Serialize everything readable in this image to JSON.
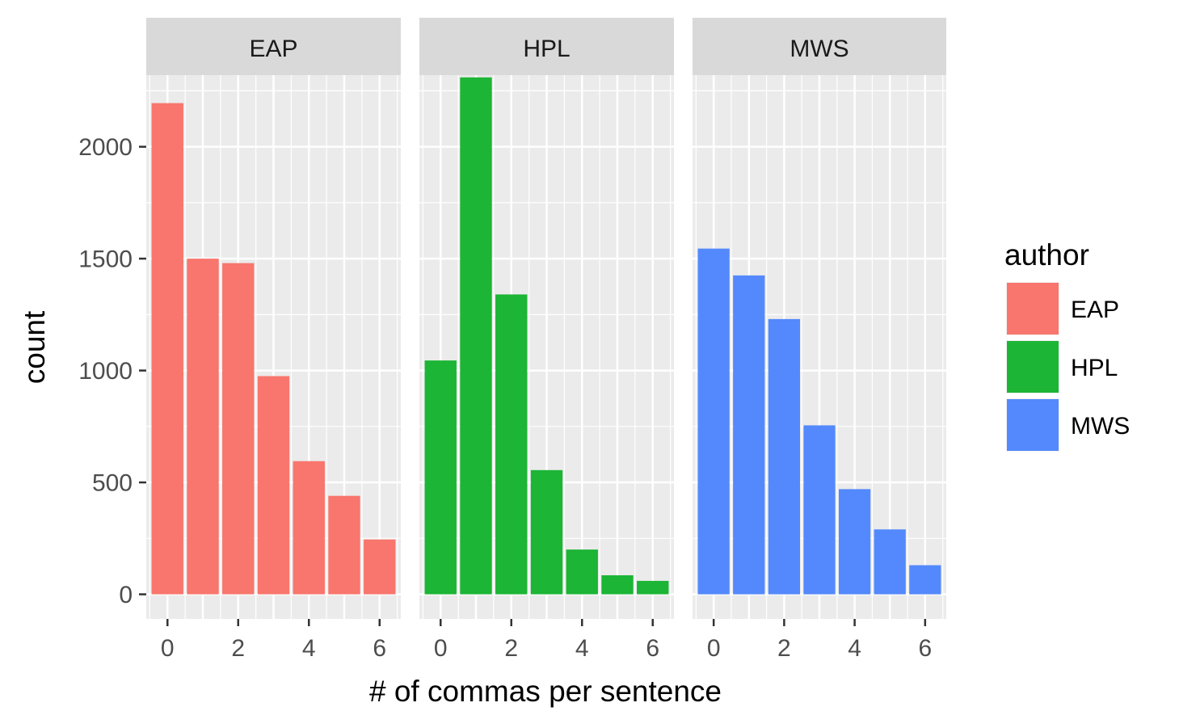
{
  "chart_data": {
    "type": "bar",
    "xlabel": "# of commas per sentence",
    "ylabel": "count",
    "x_ticks": [
      "0",
      "2",
      "4",
      "6"
    ],
    "x_tick_values": [
      0,
      2,
      4,
      6
    ],
    "xlim": [
      -0.6,
      6.6
    ],
    "y_ticks": [
      "0",
      "500",
      "1000",
      "1500",
      "2000"
    ],
    "y_tick_values": [
      0,
      500,
      1000,
      1500,
      2000
    ],
    "ylim": [
      -110,
      2320
    ],
    "grid": true,
    "legend": {
      "title": "author",
      "placement": "right",
      "entries": [
        "EAP",
        "HPL",
        "MWS"
      ]
    },
    "x": [
      0,
      1,
      2,
      3,
      4,
      5,
      6
    ],
    "facets": [
      {
        "name": "EAP",
        "color": "#F8766D",
        "values": [
          2195,
          1500,
          1480,
          975,
          595,
          440,
          245
        ]
      },
      {
        "name": "HPL",
        "color": "#1CB536",
        "values": [
          1045,
          2310,
          1340,
          555,
          200,
          85,
          60
        ]
      },
      {
        "name": "MWS",
        "color": "#5389FC",
        "values": [
          1545,
          1425,
          1230,
          755,
          470,
          290,
          130
        ]
      }
    ]
  }
}
